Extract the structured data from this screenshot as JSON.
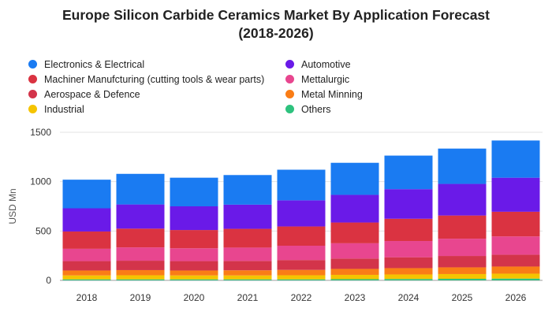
{
  "chart_data": {
    "type": "bar",
    "stacked": true,
    "title_lines": [
      "Europe Silicon Carbide Ceramics Market By Application Forecast",
      "(2018-2026)"
    ],
    "xlabel": "",
    "ylabel": "USD Mn",
    "ylim": [
      0,
      1500
    ],
    "yticks": [
      0,
      500,
      1000,
      1500
    ],
    "grid": true,
    "legend_position": "top",
    "categories": [
      "2018",
      "2019",
      "2020",
      "2021",
      "2022",
      "2023",
      "2024",
      "2025",
      "2026"
    ],
    "series": [
      {
        "name": "Others",
        "color": "#2ec27e",
        "values": [
          10,
          10,
          10,
          10,
          10,
          12,
          14,
          16,
          18
        ]
      },
      {
        "name": "Industrial",
        "color": "#f5c400",
        "values": [
          40,
          42,
          40,
          40,
          42,
          44,
          46,
          48,
          50
        ]
      },
      {
        "name": "Metal Minning",
        "color": "#fa7d16",
        "values": [
          50,
          52,
          50,
          52,
          54,
          60,
          64,
          68,
          72
        ]
      },
      {
        "name": "Aerospace & Defence",
        "color": "#d3344a",
        "values": [
          95,
          95,
          95,
          95,
          100,
          105,
          110,
          115,
          120
        ]
      },
      {
        "name": "Mettalurgic",
        "color": "#e8468f",
        "values": [
          125,
          135,
          130,
          135,
          145,
          155,
          165,
          175,
          185
        ]
      },
      {
        "name": "Machiner Manufcturing (cutting tools & wear parts)",
        "color": "#da3341",
        "values": [
          175,
          190,
          185,
          190,
          195,
          210,
          225,
          235,
          250
        ]
      },
      {
        "name": "Automotive",
        "color": "#6a1ae8",
        "values": [
          235,
          245,
          240,
          245,
          265,
          280,
          300,
          320,
          345
        ]
      },
      {
        "name": "Electronics & Electrical",
        "color": "#1a7bf2",
        "values": [
          290,
          310,
          290,
          300,
          310,
          325,
          340,
          358,
          377
        ]
      }
    ]
  },
  "legend": [
    {
      "label": "Electronics & Electrical",
      "color": "#1a7bf2"
    },
    {
      "label": "Automotive",
      "color": "#6a1ae8"
    },
    {
      "label": "Machiner Manufcturing (cutting tools & wear parts)",
      "color": "#da3341"
    },
    {
      "label": "Mettalurgic",
      "color": "#e8468f"
    },
    {
      "label": "Aerospace & Defence",
      "color": "#d3344a"
    },
    {
      "label": "Metal Minning",
      "color": "#fa7d16"
    },
    {
      "label": "Industrial",
      "color": "#f5c400"
    },
    {
      "label": "Others",
      "color": "#2ec27e"
    }
  ]
}
